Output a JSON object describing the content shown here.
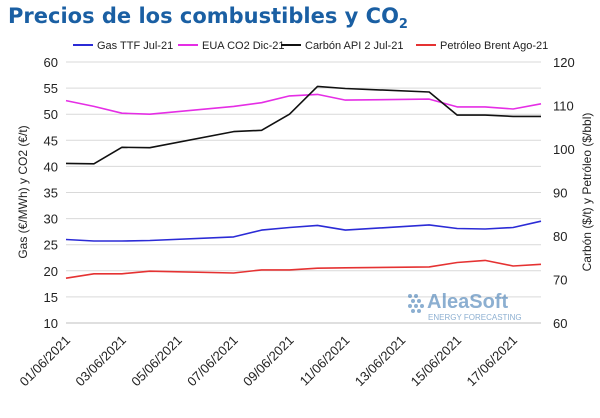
{
  "title": "Precios de los combustibles y CO",
  "title_subscript": "2",
  "watermark": {
    "brand": "AleaSoft",
    "tagline": "ENERGY FORECASTING",
    "color": "#1a5fa3"
  },
  "chart_data": {
    "type": "line",
    "x": [
      "01/06/2021",
      "02/06/2021",
      "03/06/2021",
      "04/06/2021",
      "07/06/2021",
      "08/06/2021",
      "09/06/2021",
      "10/06/2021",
      "11/06/2021",
      "14/06/2021",
      "15/06/2021",
      "16/06/2021",
      "17/06/2021",
      "18/06/2021"
    ],
    "x_ticks": [
      "01/06/2021",
      "03/06/2021",
      "05/06/2021",
      "07/06/2021",
      "09/06/2021",
      "11/06/2021",
      "13/06/2021",
      "15/06/2021",
      "17/06/2021"
    ],
    "x_range": [
      "01/06/2021",
      "18/06/2021"
    ],
    "ylabel_left": "Gas (€/MWh) y CO2 (€/t)",
    "ylabel_right": "Carbón ($/t) y Petróleo ($/bbl)",
    "ylim_left": [
      10,
      60
    ],
    "ylim_right": [
      60,
      120
    ],
    "yticks_left": [
      10,
      15,
      20,
      25,
      30,
      35,
      40,
      45,
      50,
      55,
      60
    ],
    "yticks_right": [
      60,
      70,
      80,
      90,
      100,
      110,
      120
    ],
    "grid": "horizontal",
    "legend_position": "top",
    "series": [
      {
        "name": "Gas TTF Jul-21",
        "axis": "left",
        "color": "#2b2bd6",
        "values": [
          26.0,
          25.7,
          25.7,
          25.8,
          26.5,
          27.8,
          28.3,
          28.7,
          27.8,
          28.8,
          28.1,
          28.0,
          28.3,
          29.5
        ]
      },
      {
        "name": "EUA CO2 Dic-21",
        "axis": "left",
        "color": "#e52ee5",
        "values": [
          52.6,
          51.5,
          50.2,
          50.0,
          51.5,
          52.2,
          53.5,
          53.8,
          52.7,
          52.9,
          51.4,
          51.4,
          51.0,
          52.0
        ]
      },
      {
        "name": "Carbón API 2 Jul-21",
        "axis": "right",
        "color": "#111111",
        "values": [
          96.7,
          96.6,
          100.4,
          100.3,
          104.0,
          104.3,
          108.0,
          114.4,
          113.9,
          113.1,
          107.8,
          107.8,
          107.5,
          107.5
        ]
      },
      {
        "name": "Petróleo Brent Ago-21",
        "axis": "right",
        "color": "#e53232",
        "values": [
          70.3,
          71.3,
          71.3,
          71.9,
          71.5,
          72.2,
          72.2,
          72.6,
          72.7,
          72.9,
          73.9,
          74.4,
          73.1,
          73.5
        ]
      }
    ]
  }
}
